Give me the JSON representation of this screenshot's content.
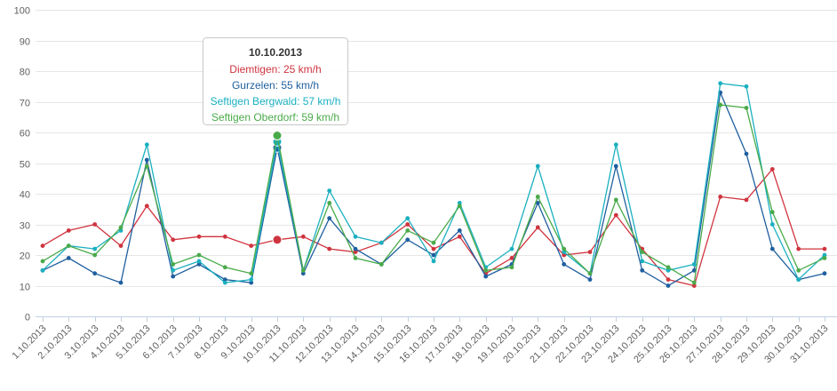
{
  "chart_data": {
    "type": "line",
    "ylim": [
      0,
      100
    ],
    "yticks": [
      0,
      10,
      20,
      30,
      40,
      50,
      60,
      70,
      80,
      90,
      100
    ],
    "grid": true,
    "categories": [
      "1.10.2013",
      "2.10.2013",
      "3.10.2013",
      "4.10.2013",
      "5.10.2013",
      "6.10.2013",
      "7.10.2013",
      "8.10.2013",
      "9.10.2013",
      "10.10.2013",
      "11.10.2013",
      "12.10.2013",
      "13.10.2013",
      "14.10.2013",
      "15.10.2013",
      "16.10.2013",
      "17.10.2013",
      "18.10.2013",
      "19.10.2013",
      "20.10.2013",
      "21.10.2013",
      "22.10.2013",
      "23.10.2013",
      "24.10.2013",
      "25.10.2013",
      "26.10.2013",
      "27.10.2013",
      "28.10.2013",
      "29.10.2013",
      "30.10.2013",
      "31.10.2013"
    ],
    "series": [
      {
        "name": "Diemtigen",
        "color": "#d0343f",
        "values": [
          23,
          28,
          30,
          23,
          36,
          25,
          26,
          26,
          23,
          25,
          26,
          22,
          21,
          24,
          30,
          22,
          26,
          14,
          19,
          29,
          20,
          21,
          33,
          22,
          12,
          10,
          39,
          38,
          48,
          22,
          22
        ]
      },
      {
        "name": "Gurzelen",
        "color": "#1f5f9f",
        "values": [
          15,
          19,
          14,
          11,
          51,
          13,
          17,
          12,
          11,
          55,
          14,
          32,
          22,
          17,
          25,
          20,
          28,
          13,
          17,
          37,
          17,
          12,
          49,
          15,
          10,
          15,
          73,
          53,
          22,
          12,
          14
        ]
      },
      {
        "name": "Seftigen Bergwald",
        "color": "#1ab0c0",
        "values": [
          15,
          23,
          22,
          28,
          56,
          15,
          18,
          11,
          12,
          57,
          15,
          41,
          26,
          24,
          32,
          18,
          37,
          16,
          22,
          49,
          21,
          14,
          56,
          18,
          15,
          17,
          76,
          75,
          30,
          12,
          20
        ]
      },
      {
        "name": "Seftigen Oberdorf",
        "color": "#4aaa4a",
        "values": [
          18,
          23,
          20,
          29,
          49,
          17,
          20,
          16,
          14,
          59,
          15,
          37,
          19,
          17,
          28,
          24,
          36,
          15,
          16,
          39,
          22,
          14,
          38,
          21,
          16,
          11,
          69,
          68,
          34,
          15,
          19
        ]
      }
    ],
    "tooltip": {
      "title": "10.10.2013",
      "highlight_index": 9,
      "lines": [
        "Diemtigen: 25 km/h",
        "Gurzelen: 55 km/h",
        "Seftigen Bergwald: 57 km/h",
        "Seftigen Oberdorf: 59 km/h"
      ]
    }
  }
}
